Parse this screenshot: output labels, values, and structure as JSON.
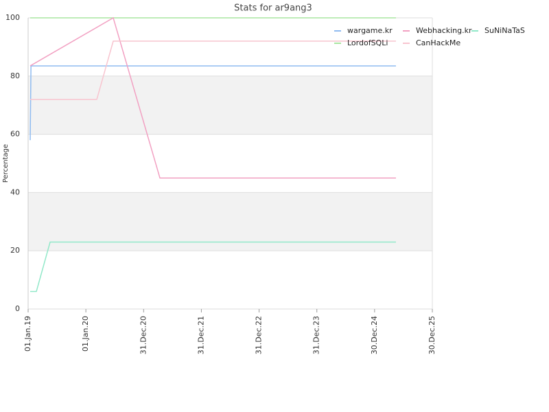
{
  "chart_data": {
    "type": "line",
    "title": "Stats for ar9ang3",
    "y_label": "Percentage",
    "ylim": [
      0,
      100
    ],
    "yticks": [
      0,
      20,
      40,
      60,
      80,
      100
    ],
    "xlim": [
      "2019-01-01",
      "2025-12-30"
    ],
    "xticks": [
      {
        "value": "2019-01-01",
        "label": "01.Jan.19"
      },
      {
        "value": "2020-01-01",
        "label": "01.Jan.20"
      },
      {
        "value": "2020-12-31",
        "label": "31.Dec.20"
      },
      {
        "value": "2021-12-31",
        "label": "31.Dec.21"
      },
      {
        "value": "2022-12-31",
        "label": "31.Dec.22"
      },
      {
        "value": "2023-12-31",
        "label": "31.Dec.23"
      },
      {
        "value": "2024-12-30",
        "label": "30.Dec.24"
      },
      {
        "value": "2025-12-30",
        "label": "30.Dec.25"
      }
    ],
    "grid": true,
    "banded": true,
    "legend": "top-right",
    "series": [
      {
        "name": "wargame.kr",
        "color": "#8fbbf0",
        "x": [
          "2019-01-14",
          "2019-01-19",
          "2025-05-14"
        ],
        "values": [
          58,
          83.5,
          83.5
        ]
      },
      {
        "name": "LordofSQLi",
        "color": "#a8e6a0",
        "x": [
          "2019-01-14",
          "2025-05-14"
        ],
        "values": [
          100,
          100
        ]
      },
      {
        "name": "Webhacking.kr",
        "color": "#f2a0c2",
        "x": [
          "2019-01-14",
          "2020-06-22",
          "2021-04-13",
          "2025-05-14"
        ],
        "values": [
          83.5,
          100,
          45,
          45
        ]
      },
      {
        "name": "CanHackMe",
        "color": "#f8c4cf",
        "x": [
          "2019-01-14",
          "2020-03-10",
          "2020-06-22",
          "2025-05-14"
        ],
        "values": [
          72,
          72,
          92,
          92
        ]
      },
      {
        "name": "SuNiNaTaS",
        "color": "#90e8c8",
        "x": [
          "2019-01-14",
          "2019-02-22",
          "2019-05-20",
          "2025-05-14"
        ],
        "values": [
          6,
          6,
          23,
          23
        ]
      }
    ]
  }
}
